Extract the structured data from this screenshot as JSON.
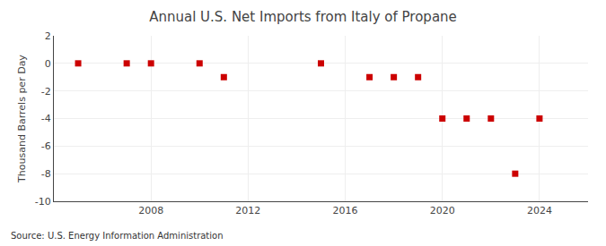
{
  "chart_data": {
    "type": "scatter",
    "title": "Annual U.S. Net Imports from Italy of Propane",
    "ylabel": "Thousand Barrels per Day",
    "annotations": [
      "Source: U.S. Energy Information Administration"
    ],
    "x": [
      2005,
      2007,
      2008,
      2010,
      2011,
      2015,
      2017,
      2018,
      2019,
      2020,
      2021,
      2022,
      2023,
      2024
    ],
    "values": [
      0,
      0,
      0,
      0,
      -1,
      0,
      -1,
      -1,
      -1,
      -4,
      -4,
      -4,
      -8,
      -4
    ],
    "color": "#cc0000",
    "marker": "square",
    "xlim": [
      2004,
      2026
    ],
    "ylim": [
      -10,
      2
    ],
    "xticks": [
      2008,
      2012,
      2016,
      2020,
      2024
    ],
    "yticks": [
      2,
      0,
      -2,
      -4,
      -6,
      -8,
      -10
    ],
    "grid": true
  }
}
